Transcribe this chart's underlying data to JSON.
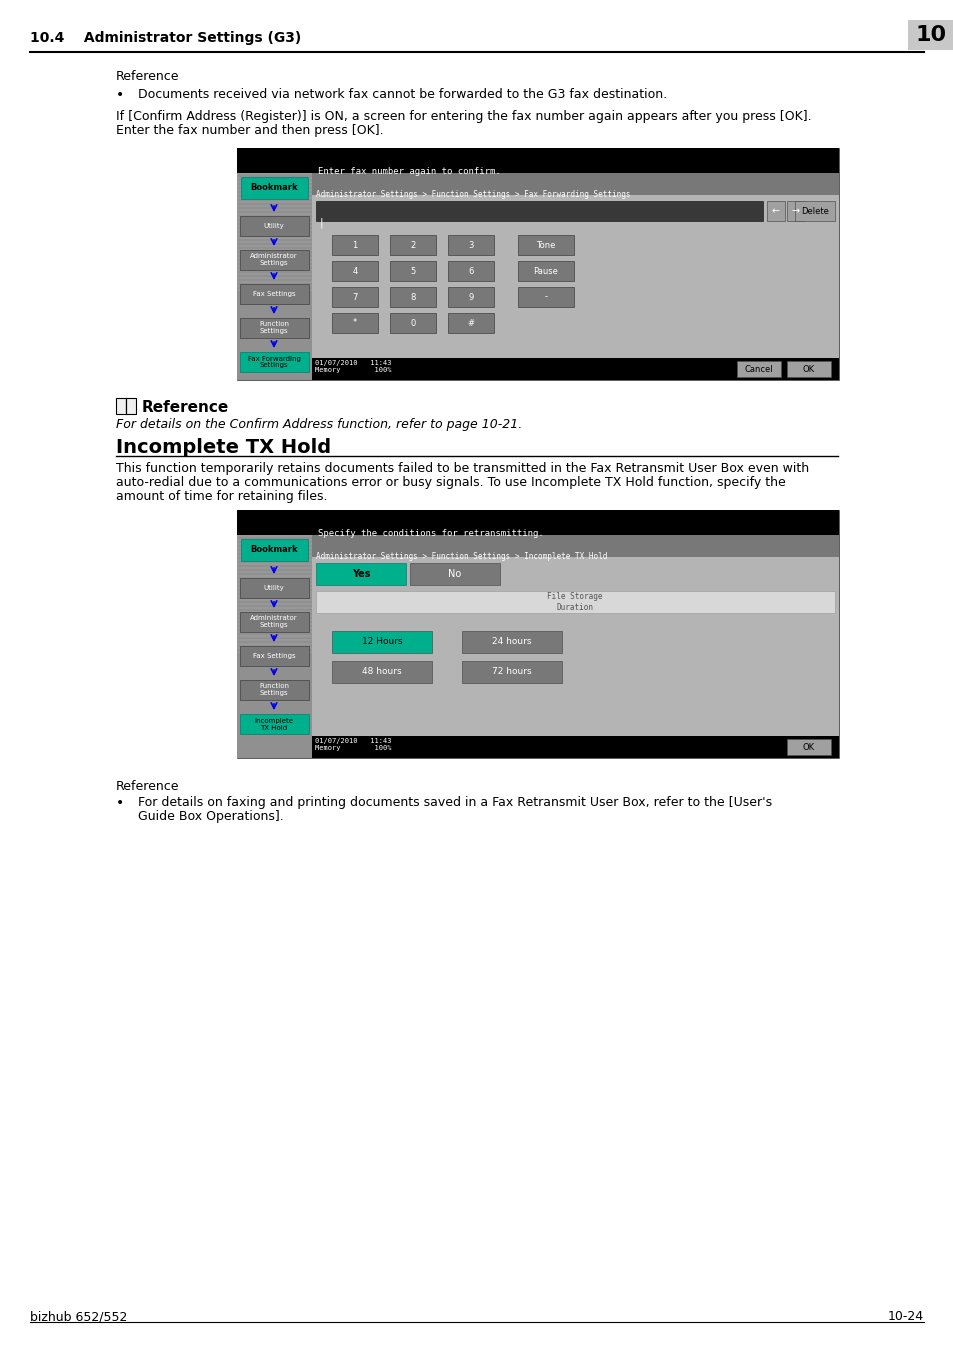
{
  "page_bg": "#ffffff",
  "header_text": "10.4    Administrator Settings (G3)",
  "header_number": "10",
  "header_number_bg": "#c8c8c8",
  "footer_left": "bizhub 652/552",
  "footer_right": "10-24",
  "section1_reference_title": "Reference",
  "section1_bullet": "Documents received via network fax cannot be forwarded to the G3 fax destination.",
  "section1_para1": "If [Confirm Address (Register)] is ON, a screen for entering the fax number again appears after you press [OK].",
  "section1_para2": "Enter the fax number and then press [OK].",
  "screen1_title": "Enter fax number again to confirm.",
  "screen1_breadcrumb": "Administrator Settings > Function Settings > Fax Forwarding Settings",
  "screen1_keypad": [
    [
      "1",
      "2",
      "3",
      "Tone"
    ],
    [
      "4",
      "5",
      "6",
      "Pause"
    ],
    [
      "7",
      "8",
      "9",
      "-"
    ],
    [
      "*",
      "0",
      "#",
      ""
    ]
  ],
  "screen1_sidebar": [
    "Bookmark",
    "Utility",
    "Administrator\nSettings",
    "Fax Settings",
    "Function\nSettings",
    "Fax Forwarding\nSettings"
  ],
  "screen1_sidebar_active": 5,
  "reference2_title": "Reference",
  "reference2_italic": "For details on the Confirm Address function, refer to page 10-21.",
  "section2_title": "Incomplete TX Hold",
  "section2_para1": "This function temporarily retains documents failed to be transmitted in the Fax Retransmit User Box even with",
  "section2_para2": "auto-redial due to a communications error or busy signals. To use Incomplete TX Hold function, specify the",
  "section2_para3": "amount of time for retaining files.",
  "screen2_title": "Specify the conditions for retransmitting.",
  "screen2_breadcrumb": "Administrator Settings > Function Settings > Incomplete TX Hold",
  "screen2_sidebar": [
    "Bookmark",
    "Utility",
    "Administrator\nSettings",
    "Fax Settings",
    "Function\nSettings",
    "Incomplete\nTX Hold"
  ],
  "screen2_sidebar_active": 5,
  "screen2_info_text": "File Storage\nDuration",
  "screen2_hours": [
    "12 Hours",
    "24 hours",
    "48 hours",
    "72 hours"
  ],
  "section3_reference_title": "Reference",
  "section3_bullet1": "For details on faxing and printing documents saved in a Fax Retransmit User Box, refer to the [User's",
  "section3_bullet2": "Guide Box Operations].",
  "green_color": "#00b08c",
  "dark_bg": "#000000",
  "sidebar_bg": "#909090",
  "main_bg": "#b4b4b4",
  "btn_dark": "#787878",
  "btn_mid": "#a0a0a0",
  "breadcrumb_bg": "#787878",
  "status_bg": "#1a1a1a",
  "blue_arrow": "#0000ee",
  "input_bg": "#383838",
  "datetime_text": "01/07/2010   11:43\nMemory        100%"
}
